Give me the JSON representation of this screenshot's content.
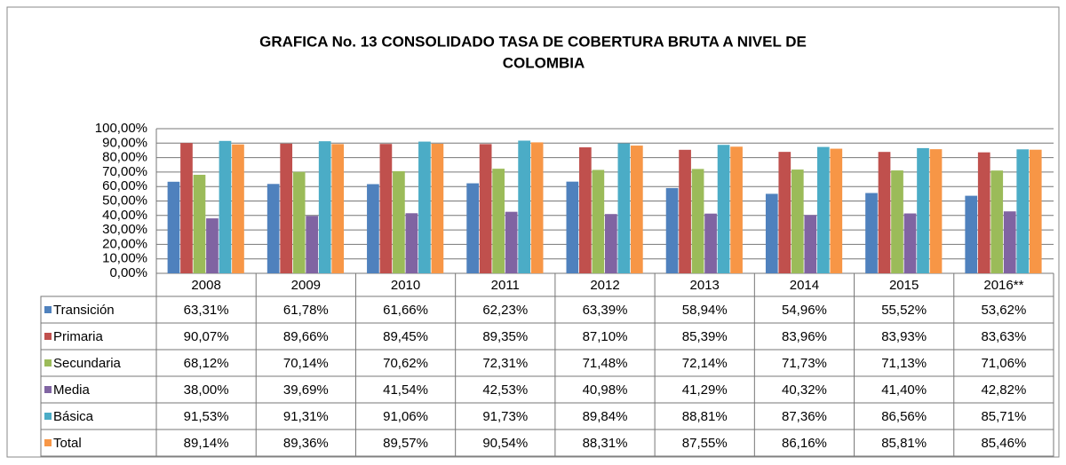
{
  "chart_data": {
    "type": "bar",
    "title": "GRAFICA No. 13  CONSOLIDADO TASA DE COBERTURA BRUTA A NIVEL DE",
    "title_line2": "COLOMBIA",
    "categories": [
      "2008",
      "2009",
      "2010",
      "2011",
      "2012",
      "2013",
      "2014",
      "2015",
      "2016**"
    ],
    "ylim": [
      0,
      100
    ],
    "yticks": [
      {
        "value": 0,
        "label": "0,00%"
      },
      {
        "value": 10,
        "label": "10,00%"
      },
      {
        "value": 20,
        "label": "20,00%"
      },
      {
        "value": 30,
        "label": "30,00%"
      },
      {
        "value": 40,
        "label": "40,00%"
      },
      {
        "value": 50,
        "label": "50,00%"
      },
      {
        "value": 60,
        "label": "60,00%"
      },
      {
        "value": 70,
        "label": "70,00%"
      },
      {
        "value": 80,
        "label": "80,00%"
      },
      {
        "value": 90,
        "label": "90,00%"
      },
      {
        "value": 100,
        "label": "100,00%"
      }
    ],
    "grid": true,
    "series": [
      {
        "name": "Transición",
        "color": "#4f81bd",
        "values": [
          63.31,
          61.78,
          61.66,
          62.23,
          63.39,
          58.94,
          54.96,
          55.52,
          53.62
        ],
        "value_labels": [
          "63,31%",
          "61,78%",
          "61,66%",
          "62,23%",
          "63,39%",
          "58,94%",
          "54,96%",
          "55,52%",
          "53,62%"
        ]
      },
      {
        "name": "Primaria",
        "color": "#c0504d",
        "values": [
          90.07,
          89.66,
          89.45,
          89.35,
          87.1,
          85.39,
          83.96,
          83.93,
          83.63
        ],
        "value_labels": [
          "90,07%",
          "89,66%",
          "89,45%",
          "89,35%",
          "87,10%",
          "85,39%",
          "83,96%",
          "83,93%",
          "83,63%"
        ]
      },
      {
        "name": "Secundaria",
        "color": "#9bbb59",
        "values": [
          68.12,
          70.14,
          70.62,
          72.31,
          71.48,
          72.14,
          71.73,
          71.13,
          71.06
        ],
        "value_labels": [
          "68,12%",
          "70,14%",
          "70,62%",
          "72,31%",
          "71,48%",
          "72,14%",
          "71,73%",
          "71,13%",
          "71,06%"
        ]
      },
      {
        "name": "Media",
        "color": "#8064a2",
        "values": [
          38.0,
          39.69,
          41.54,
          42.53,
          40.98,
          41.29,
          40.32,
          41.4,
          42.82
        ],
        "value_labels": [
          "38,00%",
          "39,69%",
          "41,54%",
          "42,53%",
          "40,98%",
          "41,29%",
          "40,32%",
          "41,40%",
          "42,82%"
        ]
      },
      {
        "name": "Básica",
        "color": "#4bacc6",
        "values": [
          91.53,
          91.31,
          91.06,
          91.73,
          89.84,
          88.81,
          87.36,
          86.56,
          85.71
        ],
        "value_labels": [
          "91,53%",
          "91,31%",
          "91,06%",
          "91,73%",
          "89,84%",
          "88,81%",
          "87,36%",
          "86,56%",
          "85,71%"
        ]
      },
      {
        "name": "Total",
        "color": "#f79646",
        "values": [
          89.14,
          89.36,
          89.57,
          90.54,
          88.31,
          87.55,
          86.16,
          85.81,
          85.46
        ],
        "value_labels": [
          "89,14%",
          "89,36%",
          "89,57%",
          "90,54%",
          "88,31%",
          "87,55%",
          "86,16%",
          "85,81%",
          "85,46%"
        ]
      }
    ]
  }
}
